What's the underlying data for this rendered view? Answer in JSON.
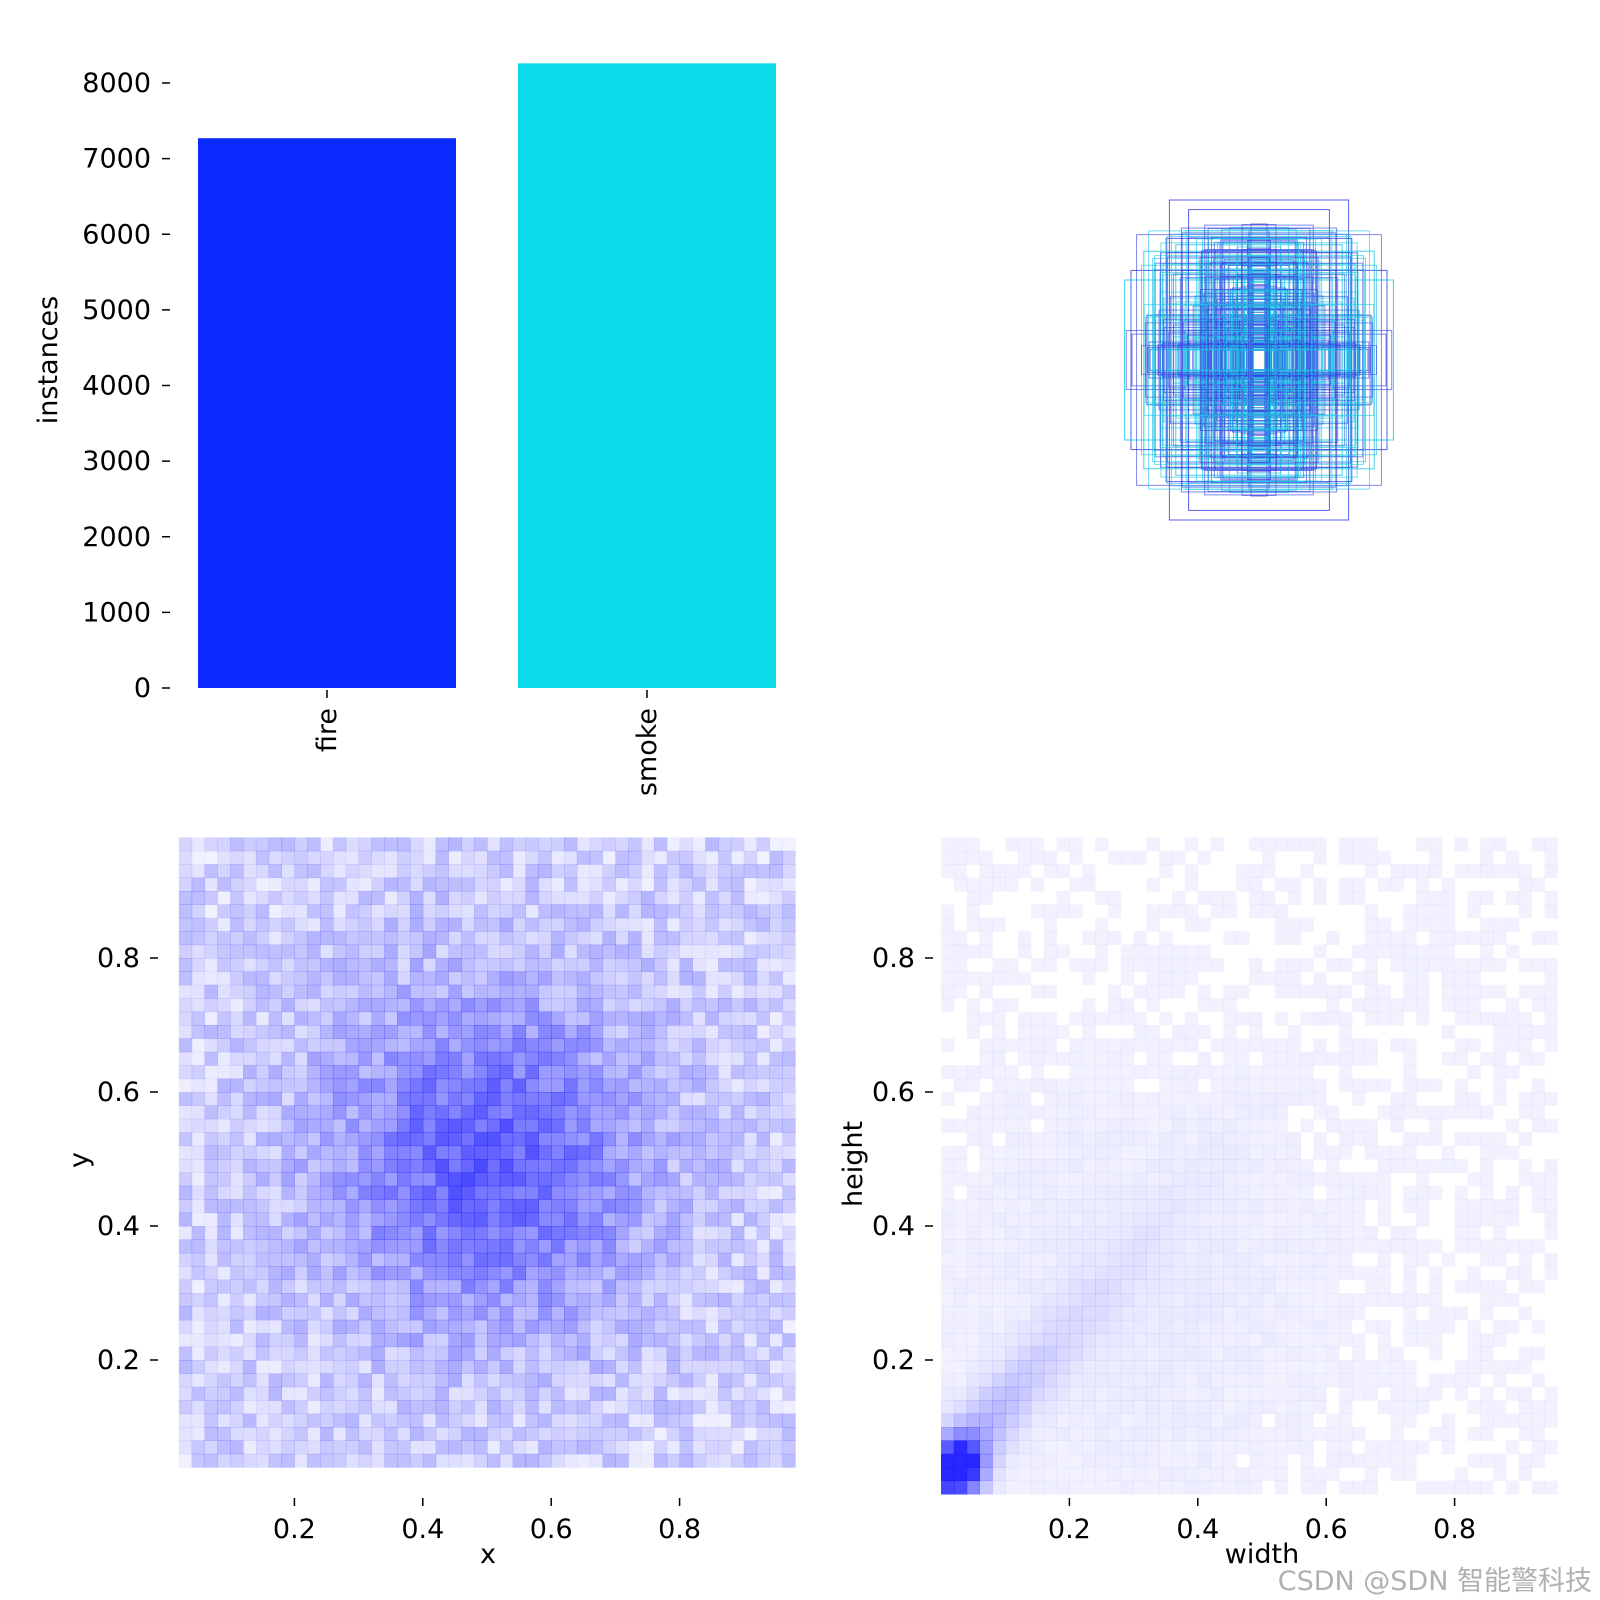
{
  "watermark": "CSDN @SDN 智能警科技",
  "chart_data": [
    {
      "type": "bar",
      "categories": [
        "fire",
        "smoke"
      ],
      "values": [
        7270,
        8260
      ],
      "colors": [
        "#0a29ff",
        "#0bdbe9"
      ],
      "ylabel": "instances",
      "ylim": [
        0,
        8400
      ],
      "yticks": [
        0,
        1000,
        2000,
        3000,
        4000,
        5000,
        6000,
        7000,
        8000
      ],
      "ytick_labels": [
        "0",
        "1000",
        "2000",
        "3000",
        "4000",
        "5000",
        "6000",
        "7000",
        "8000"
      ]
    },
    {
      "type": "scatter",
      "description_kind": "bounding boxes centered at (0.5, 0.5)",
      "colors": [
        "#3a45e0",
        "#21c8e6"
      ],
      "boxes": [
        {
          "w": 0.28,
          "h": 0.5,
          "color": "#3a45e0"
        },
        {
          "w": 0.22,
          "h": 0.47,
          "color": "#3a45e0"
        },
        {
          "w": 0.29,
          "h": 0.38,
          "color": "#3a45e0"
        },
        {
          "w": 0.4,
          "h": 0.28,
          "color": "#3a45e0"
        },
        {
          "w": 0.42,
          "h": 0.25,
          "color": "#21c8e6"
        },
        {
          "w": 0.36,
          "h": 0.34,
          "color": "#21c8e6"
        },
        {
          "w": 0.18,
          "h": 0.34,
          "color": "#3a45e0"
        },
        {
          "w": 0.3,
          "h": 0.3,
          "color": "#21c8e6"
        },
        {
          "w": 0.26,
          "h": 0.36,
          "color": "#21c8e6"
        },
        {
          "w": 0.35,
          "h": 0.14,
          "color": "#3a45e0"
        },
        {
          "w": 0.24,
          "h": 0.28,
          "color": "#3a45e0"
        },
        {
          "w": 0.12,
          "h": 0.3,
          "color": "#3a45e0"
        },
        {
          "w": 0.2,
          "h": 0.2,
          "color": "#21c8e6"
        },
        {
          "w": 0.08,
          "h": 0.26,
          "color": "#21c8e6"
        },
        {
          "w": 0.16,
          "h": 0.12,
          "color": "#3a45e0"
        },
        {
          "w": 0.1,
          "h": 0.1,
          "color": "#21c8e6"
        },
        {
          "w": 0.05,
          "h": 0.06,
          "color": "#3a45e0"
        }
      ]
    },
    {
      "type": "heatmap",
      "xlabel": "x",
      "ylabel": "y",
      "x_range": [
        0.0,
        1.0
      ],
      "y_range": [
        0.0,
        1.0
      ],
      "xticks": [
        0.2,
        0.4,
        0.6,
        0.8
      ],
      "xtick_labels": [
        "0.2",
        "0.4",
        "0.6",
        "0.8"
      ],
      "yticks": [
        0.2,
        0.4,
        0.6,
        0.8
      ],
      "ytick_labels": [
        "0.2",
        "0.4",
        "0.6",
        "0.8"
      ],
      "peak": {
        "x": 0.5,
        "y": 0.5
      },
      "color": "#1a1aff"
    },
    {
      "type": "heatmap",
      "xlabel": "width",
      "ylabel": "height",
      "x_range": [
        0.0,
        1.0
      ],
      "y_range": [
        0.0,
        1.0
      ],
      "xticks": [
        0.2,
        0.4,
        0.6,
        0.8
      ],
      "xtick_labels": [
        "0.2",
        "0.4",
        "0.6",
        "0.8"
      ],
      "yticks": [
        0.2,
        0.4,
        0.6,
        0.8
      ],
      "ytick_labels": [
        "0.2",
        "0.4",
        "0.6",
        "0.8"
      ],
      "peak": {
        "x": 0.03,
        "y": 0.04
      },
      "color": "#1a1aff"
    }
  ]
}
